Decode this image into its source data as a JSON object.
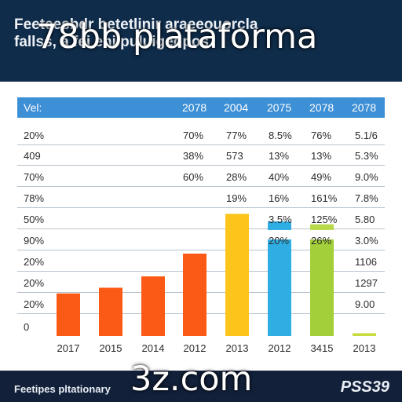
{
  "header": {
    "title": "Feeteesbdr betetlinir araeeouorcla",
    "subtitle": "fallss, a fei eni puluigedpos"
  },
  "watermarks": {
    "top": "78bb plataforma",
    "bottom": "3z.com"
  },
  "table": {
    "header_cells": [
      "Vel:",
      "2078",
      "2004",
      "2075",
      "2078",
      "2078"
    ],
    "rows": [
      {
        "label": "20%",
        "cells": [
          "70%",
          "77%",
          "8.5%",
          "76%",
          "5.1/6"
        ]
      },
      {
        "label": "409",
        "cells": [
          "38%",
          "573",
          "13%",
          "13%",
          "5.3%"
        ]
      },
      {
        "label": "70%",
        "cells": [
          "60%",
          "28%",
          "40%",
          "49%",
          "9.0%"
        ]
      },
      {
        "label": "78%",
        "cells": [
          "",
          "19%",
          "16%",
          "161%",
          "7.8%"
        ]
      },
      {
        "label": "50%",
        "cells": [
          "",
          "",
          "3.5%",
          "125%",
          "5.80"
        ]
      },
      {
        "label": "90%",
        "cells": [
          "",
          "",
          "20%",
          "26%",
          "3.0%"
        ]
      },
      {
        "label": "20%",
        "cells": [
          "",
          "",
          "",
          "",
          "1106"
        ]
      },
      {
        "label": "20%",
        "cells": [
          "",
          "",
          "",
          "",
          "1297"
        ]
      },
      {
        "label": "20%",
        "cells": [
          "",
          "",
          "",
          "",
          "9.00"
        ]
      },
      {
        "label": "0",
        "cells": [
          "",
          "",
          "",
          "",
          ""
        ]
      }
    ]
  },
  "chart_data": {
    "type": "bar",
    "categories": [
      "2017",
      "2015",
      "2014",
      "2012",
      "2013",
      "2012",
      "3415",
      "2013"
    ],
    "values": [
      15,
      17,
      21,
      29,
      43,
      34,
      34,
      1
    ],
    "caps": [
      0,
      0,
      0,
      0,
      0,
      3,
      2,
      0
    ],
    "ylim": [
      0,
      50
    ],
    "colors": [
      "#fb5a16",
      "#fb5a16",
      "#fb5a16",
      "#fb5a16",
      "#fdc51c",
      "#2faee4",
      "#a2cf3a",
      "#c9dc3f"
    ],
    "cap_colors": [
      "",
      "",
      "",
      "",
      "",
      "#2faee4",
      "#b7d94a",
      ""
    ]
  },
  "footer": {
    "left": "Feetipes pltationary",
    "right": "PSS39"
  }
}
